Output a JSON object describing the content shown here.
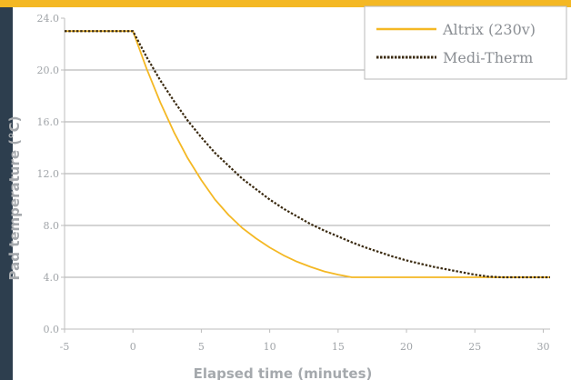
{
  "chart_data": {
    "type": "line",
    "title": "",
    "xlabel": "Elapsed time (minutes)",
    "ylabel": "Pad temperature (°C)",
    "xlim": [
      -5,
      30.5
    ],
    "ylim": [
      0,
      24
    ],
    "x_ticks": [
      -5,
      0,
      5,
      10,
      15,
      20,
      25,
      30
    ],
    "y_ticks": [
      0,
      4,
      8,
      12,
      16,
      20,
      24
    ],
    "y_tick_labels": [
      "0.0",
      "4.0",
      "8.0",
      "12.0",
      "16.0",
      "20.0",
      "24.0"
    ],
    "gridlines": "horizontal",
    "legend_position": "top-right",
    "series": [
      {
        "name": "Altrix (230v)",
        "color": "#f4b824",
        "style": "solid",
        "x": [
          -5,
          0,
          1,
          2,
          3,
          4,
          5,
          6,
          7,
          8,
          9,
          10,
          11,
          12,
          13,
          14,
          15,
          16,
          18,
          20,
          22,
          24,
          26,
          28,
          30.5
        ],
        "y": [
          23,
          23,
          20.1,
          17.5,
          15.2,
          13.2,
          11.5,
          10.0,
          8.8,
          7.8,
          7.0,
          6.3,
          5.7,
          5.2,
          4.8,
          4.45,
          4.2,
          4.0,
          4.0,
          4.0,
          4.0,
          4.0,
          4.0,
          4.0,
          4.0
        ]
      },
      {
        "name": "Medi-Therm",
        "color": "#3a2a10",
        "style": "dotted",
        "x": [
          -5,
          0,
          1,
          2,
          3,
          4,
          5,
          6,
          7,
          8,
          9,
          10,
          11,
          12,
          13,
          14,
          15,
          16,
          17,
          18,
          19,
          20,
          21,
          22,
          23,
          24,
          25,
          26,
          27,
          28,
          30.5
        ],
        "y": [
          23,
          23,
          21.0,
          19.2,
          17.6,
          16.1,
          14.8,
          13.6,
          12.6,
          11.6,
          10.8,
          10.0,
          9.3,
          8.7,
          8.1,
          7.6,
          7.15,
          6.7,
          6.3,
          5.95,
          5.6,
          5.3,
          5.05,
          4.8,
          4.6,
          4.4,
          4.2,
          4.05,
          4.0,
          4.0,
          4.0
        ]
      }
    ]
  }
}
